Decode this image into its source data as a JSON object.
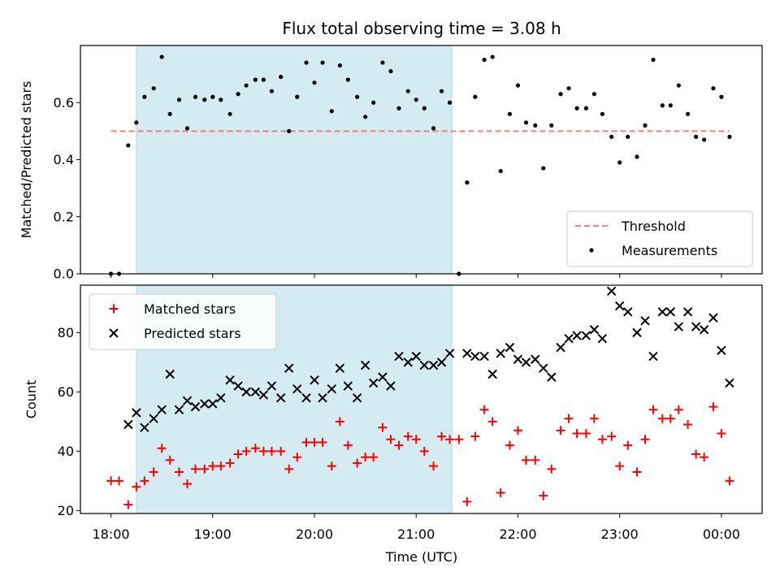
{
  "chart_data": {
    "title": "Flux total observing time = 3.08 h",
    "xlabel": "Time (UTC)",
    "x_ticks": [
      "18:00",
      "19:00",
      "20:00",
      "21:00",
      "22:00",
      "23:00",
      "00:00"
    ],
    "x_range_hours": [
      17.7,
      24.4
    ],
    "x_tick_hours": [
      18,
      19,
      20,
      21,
      22,
      23,
      24
    ],
    "highlight_span_hours": [
      18.25,
      21.35
    ],
    "highlight_color": "#d4ebf2",
    "panels": [
      {
        "type": "scatter",
        "ylabel": "Matched/Predicted stars",
        "ylim": [
          0.0,
          0.8
        ],
        "y_ticks": [
          0.0,
          0.2,
          0.4,
          0.6
        ],
        "threshold": {
          "name": "Threshold",
          "value": 0.5,
          "color": "#f08080",
          "style": "dashed"
        },
        "legend_placement": "lower-right",
        "series": [
          {
            "name": "Measurements",
            "color": "#000000",
            "marker": "dot",
            "points": [
              [
                18.0,
                0.0
              ],
              [
                18.08,
                0.0
              ],
              [
                18.17,
                0.45
              ],
              [
                18.25,
                0.53
              ],
              [
                18.33,
                0.62
              ],
              [
                18.42,
                0.65
              ],
              [
                18.5,
                0.76
              ],
              [
                18.58,
                0.56
              ],
              [
                18.67,
                0.61
              ],
              [
                18.75,
                0.51
              ],
              [
                18.83,
                0.62
              ],
              [
                18.92,
                0.61
              ],
              [
                19.0,
                0.62
              ],
              [
                19.08,
                0.61
              ],
              [
                19.17,
                0.56
              ],
              [
                19.25,
                0.63
              ],
              [
                19.33,
                0.66
              ],
              [
                19.42,
                0.68
              ],
              [
                19.5,
                0.68
              ],
              [
                19.58,
                0.64
              ],
              [
                19.67,
                0.69
              ],
              [
                19.75,
                0.5
              ],
              [
                19.83,
                0.62
              ],
              [
                19.92,
                0.74
              ],
              [
                20.0,
                0.67
              ],
              [
                20.08,
                0.74
              ],
              [
                20.17,
                0.57
              ],
              [
                20.25,
                0.73
              ],
              [
                20.33,
                0.68
              ],
              [
                20.42,
                0.62
              ],
              [
                20.5,
                0.55
              ],
              [
                20.58,
                0.6
              ],
              [
                20.67,
                0.74
              ],
              [
                20.75,
                0.71
              ],
              [
                20.83,
                0.58
              ],
              [
                20.92,
                0.64
              ],
              [
                21.0,
                0.61
              ],
              [
                21.08,
                0.58
              ],
              [
                21.17,
                0.51
              ],
              [
                21.25,
                0.64
              ],
              [
                21.33,
                0.6
              ],
              [
                21.42,
                0.0
              ],
              [
                21.5,
                0.32
              ],
              [
                21.58,
                0.62
              ],
              [
                21.67,
                0.75
              ],
              [
                21.75,
                0.76
              ],
              [
                21.83,
                0.36
              ],
              [
                21.92,
                0.56
              ],
              [
                22.0,
                0.66
              ],
              [
                22.08,
                0.53
              ],
              [
                22.17,
                0.52
              ],
              [
                22.25,
                0.37
              ],
              [
                22.33,
                0.52
              ],
              [
                22.42,
                0.63
              ],
              [
                22.5,
                0.65
              ],
              [
                22.58,
                0.58
              ],
              [
                22.67,
                0.58
              ],
              [
                22.75,
                0.63
              ],
              [
                22.83,
                0.56
              ],
              [
                22.92,
                0.48
              ],
              [
                23.0,
                0.39
              ],
              [
                23.08,
                0.48
              ],
              [
                23.17,
                0.41
              ],
              [
                23.25,
                0.52
              ],
              [
                23.33,
                0.75
              ],
              [
                23.42,
                0.59
              ],
              [
                23.5,
                0.59
              ],
              [
                23.58,
                0.66
              ],
              [
                23.67,
                0.56
              ],
              [
                23.75,
                0.48
              ],
              [
                23.83,
                0.47
              ],
              [
                23.92,
                0.65
              ],
              [
                24.0,
                0.62
              ],
              [
                24.08,
                0.48
              ]
            ]
          }
        ],
        "legend": [
          "Threshold",
          "Measurements"
        ]
      },
      {
        "type": "scatter",
        "ylabel": "Count",
        "ylim": [
          19,
          96
        ],
        "y_ticks": [
          20,
          40,
          60,
          80
        ],
        "legend_placement": "upper-left",
        "series": [
          {
            "name": "Matched stars",
            "color": "#ff0000",
            "marker": "plus",
            "points": [
              [
                18.0,
                30
              ],
              [
                18.08,
                30
              ],
              [
                18.17,
                22
              ],
              [
                18.25,
                28
              ],
              [
                18.33,
                30
              ],
              [
                18.42,
                33
              ],
              [
                18.5,
                41
              ],
              [
                18.58,
                37
              ],
              [
                18.67,
                33
              ],
              [
                18.75,
                29
              ],
              [
                18.83,
                34
              ],
              [
                18.92,
                34
              ],
              [
                19.0,
                35
              ],
              [
                19.08,
                35
              ],
              [
                19.17,
                36
              ],
              [
                19.25,
                39
              ],
              [
                19.33,
                40
              ],
              [
                19.42,
                41
              ],
              [
                19.5,
                40
              ],
              [
                19.58,
                40
              ],
              [
                19.67,
                40
              ],
              [
                19.75,
                34
              ],
              [
                19.83,
                38
              ],
              [
                19.92,
                43
              ],
              [
                20.0,
                43
              ],
              [
                20.08,
                43
              ],
              [
                20.17,
                35
              ],
              [
                20.25,
                50
              ],
              [
                20.33,
                42
              ],
              [
                20.42,
                36
              ],
              [
                20.5,
                38
              ],
              [
                20.58,
                38
              ],
              [
                20.67,
                48
              ],
              [
                20.75,
                44
              ],
              [
                20.83,
                42
              ],
              [
                20.92,
                45
              ],
              [
                21.0,
                44
              ],
              [
                21.08,
                40
              ],
              [
                21.17,
                35
              ],
              [
                21.25,
                45
              ],
              [
                21.33,
                44
              ],
              [
                21.42,
                44
              ],
              [
                21.5,
                23
              ],
              [
                21.58,
                45
              ],
              [
                21.67,
                54
              ],
              [
                21.75,
                50
              ],
              [
                21.83,
                26
              ],
              [
                21.92,
                42
              ],
              [
                22.0,
                47
              ],
              [
                22.08,
                37
              ],
              [
                22.17,
                37
              ],
              [
                22.25,
                25
              ],
              [
                22.33,
                34
              ],
              [
                22.42,
                47
              ],
              [
                22.5,
                51
              ],
              [
                22.58,
                46
              ],
              [
                22.67,
                46
              ],
              [
                22.75,
                51
              ],
              [
                22.83,
                44
              ],
              [
                22.92,
                45
              ],
              [
                23.0,
                35
              ],
              [
                23.08,
                42
              ],
              [
                23.17,
                33
              ],
              [
                23.25,
                44
              ],
              [
                23.33,
                54
              ],
              [
                23.42,
                51
              ],
              [
                23.5,
                51
              ],
              [
                23.58,
                54
              ],
              [
                23.67,
                49
              ],
              [
                23.75,
                39
              ],
              [
                23.83,
                38
              ],
              [
                23.92,
                55
              ],
              [
                24.0,
                46
              ],
              [
                24.08,
                30
              ]
            ]
          },
          {
            "name": "Predicted stars",
            "color": "#000000",
            "marker": "x",
            "points": [
              [
                18.17,
                49
              ],
              [
                18.25,
                53
              ],
              [
                18.33,
                48
              ],
              [
                18.42,
                51
              ],
              [
                18.5,
                54
              ],
              [
                18.58,
                66
              ],
              [
                18.67,
                54
              ],
              [
                18.75,
                57
              ],
              [
                18.83,
                55
              ],
              [
                18.92,
                56
              ],
              [
                19.0,
                56
              ],
              [
                19.08,
                58
              ],
              [
                19.17,
                64
              ],
              [
                19.25,
                62
              ],
              [
                19.33,
                60
              ],
              [
                19.42,
                60
              ],
              [
                19.5,
                59
              ],
              [
                19.58,
                62
              ],
              [
                19.67,
                58
              ],
              [
                19.75,
                68
              ],
              [
                19.83,
                61
              ],
              [
                19.92,
                58
              ],
              [
                20.0,
                64
              ],
              [
                20.08,
                58
              ],
              [
                20.17,
                61
              ],
              [
                20.25,
                68
              ],
              [
                20.33,
                62
              ],
              [
                20.42,
                58
              ],
              [
                20.5,
                69
              ],
              [
                20.58,
                63
              ],
              [
                20.67,
                65
              ],
              [
                20.75,
                62
              ],
              [
                20.83,
                72
              ],
              [
                20.92,
                70
              ],
              [
                21.0,
                72
              ],
              [
                21.08,
                69
              ],
              [
                21.17,
                69
              ],
              [
                21.25,
                70
              ],
              [
                21.33,
                73
              ],
              [
                21.5,
                73
              ],
              [
                21.58,
                72
              ],
              [
                21.67,
                72
              ],
              [
                21.75,
                66
              ],
              [
                21.83,
                73
              ],
              [
                21.92,
                75
              ],
              [
                22.0,
                71
              ],
              [
                22.08,
                70
              ],
              [
                22.17,
                71
              ],
              [
                22.25,
                68
              ],
              [
                22.33,
                65
              ],
              [
                22.42,
                75
              ],
              [
                22.5,
                78
              ],
              [
                22.58,
                79
              ],
              [
                22.67,
                79
              ],
              [
                22.75,
                81
              ],
              [
                22.83,
                78
              ],
              [
                22.92,
                94
              ],
              [
                23.0,
                89
              ],
              [
                23.08,
                87
              ],
              [
                23.17,
                80
              ],
              [
                23.25,
                84
              ],
              [
                23.33,
                72
              ],
              [
                23.42,
                87
              ],
              [
                23.5,
                87
              ],
              [
                23.58,
                82
              ],
              [
                23.67,
                87
              ],
              [
                23.75,
                82
              ],
              [
                23.83,
                81
              ],
              [
                23.92,
                85
              ],
              [
                24.0,
                74
              ],
              [
                24.08,
                63
              ]
            ]
          }
        ],
        "legend": [
          "Matched stars",
          "Predicted stars"
        ]
      }
    ]
  }
}
